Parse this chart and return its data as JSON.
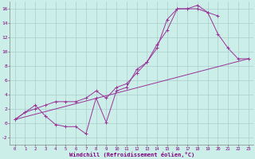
{
  "background_color": "#cceee8",
  "grid_color": "#aacccc",
  "line_color": "#993399",
  "xlim_min": -0.5,
  "xlim_max": 23.5,
  "ylim_min": -3.0,
  "ylim_max": 17.0,
  "xticks": [
    0,
    1,
    2,
    3,
    4,
    5,
    6,
    7,
    8,
    9,
    10,
    11,
    12,
    13,
    14,
    15,
    16,
    17,
    18,
    19,
    20,
    21,
    22,
    23
  ],
  "yticks": [
    -2,
    0,
    2,
    4,
    6,
    8,
    10,
    12,
    14,
    16
  ],
  "xlabel": "Windchill (Refroidissement éolien,°C)",
  "line1_x": [
    0,
    1,
    2,
    3,
    4,
    5,
    6,
    7,
    8,
    9,
    10,
    11,
    12,
    13,
    14,
    15,
    16,
    17,
    18,
    19,
    20,
    21,
    22,
    23
  ],
  "line1_y": [
    0.5,
    1.5,
    2.0,
    2.5,
    3.0,
    3.0,
    3.0,
    3.5,
    4.5,
    3.5,
    5.0,
    5.5,
    7.0,
    8.5,
    11.0,
    13.0,
    16.0,
    16.0,
    16.5,
    15.5,
    12.5,
    10.5,
    9.0,
    9.0
  ],
  "line2_x": [
    0,
    1,
    2,
    3,
    4,
    5,
    6,
    7,
    8,
    9,
    10,
    11,
    12,
    13,
    14,
    15,
    16,
    17,
    18,
    19,
    20
  ],
  "line2_y": [
    0.5,
    1.5,
    2.5,
    1.0,
    -0.2,
    -0.5,
    -0.5,
    -1.5,
    3.5,
    0.1,
    4.5,
    5.0,
    7.5,
    8.5,
    10.5,
    14.5,
    16.0,
    16.0,
    16.0,
    15.5,
    15.0
  ],
  "line3_x": [
    0,
    23
  ],
  "line3_y": [
    0.5,
    9.0
  ]
}
